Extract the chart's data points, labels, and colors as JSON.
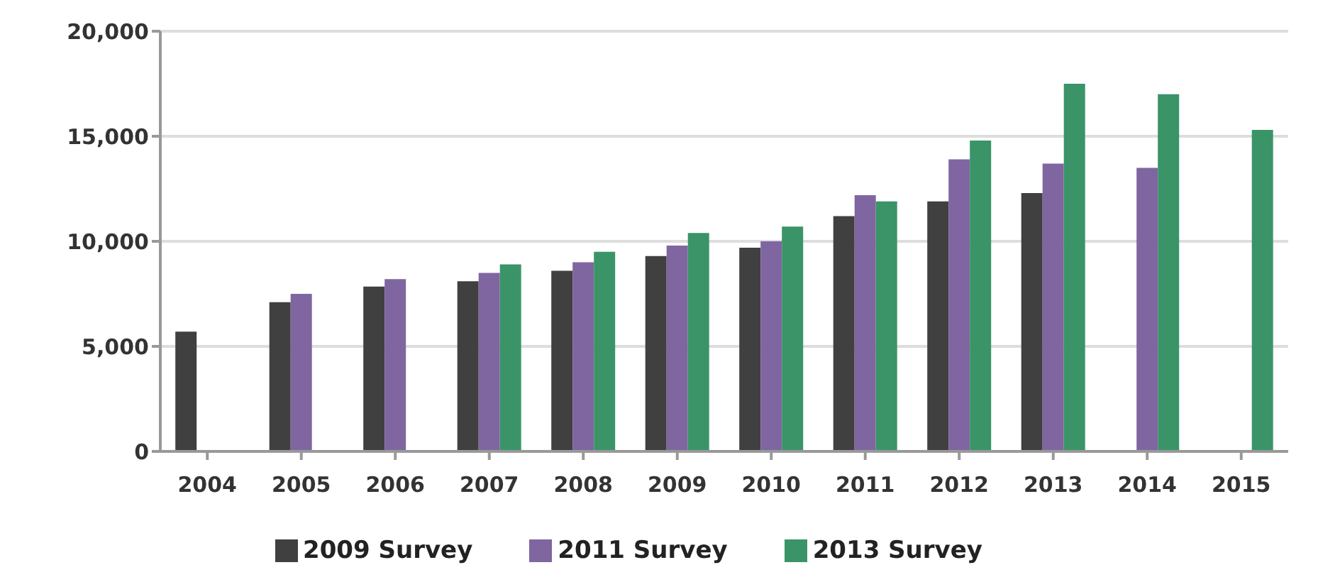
{
  "chart_data": {
    "type": "bar",
    "categories": [
      "2004",
      "2005",
      "2006",
      "2007",
      "2008",
      "2009",
      "2010",
      "2011",
      "2012",
      "2013",
      "2014",
      "2015"
    ],
    "series": [
      {
        "name": "2009 Survey",
        "color": "#404040",
        "values": [
          5700,
          7100,
          7850,
          8100,
          8600,
          9300,
          9700,
          11200,
          11900,
          12300,
          null,
          null
        ]
      },
      {
        "name": "2011 Survey",
        "color": "#7f66a0",
        "values": [
          null,
          7500,
          8200,
          8500,
          9000,
          9800,
          10000,
          12200,
          13900,
          13700,
          13500,
          null
        ]
      },
      {
        "name": "2013 Survey",
        "color": "#3a9467",
        "values": [
          null,
          null,
          null,
          8900,
          9500,
          10400,
          10700,
          11900,
          14800,
          17500,
          17000,
          15300
        ]
      }
    ],
    "ylim": [
      0,
      20000
    ],
    "yticks": [
      {
        "value": 0,
        "label": "0"
      },
      {
        "value": 5000,
        "label": "5,000"
      },
      {
        "value": 10000,
        "label": "10,000"
      },
      {
        "value": 15000,
        "label": "15,000"
      },
      {
        "value": 20000,
        "label": "20,000"
      }
    ],
    "grid": "y",
    "legend": "bottom"
  }
}
